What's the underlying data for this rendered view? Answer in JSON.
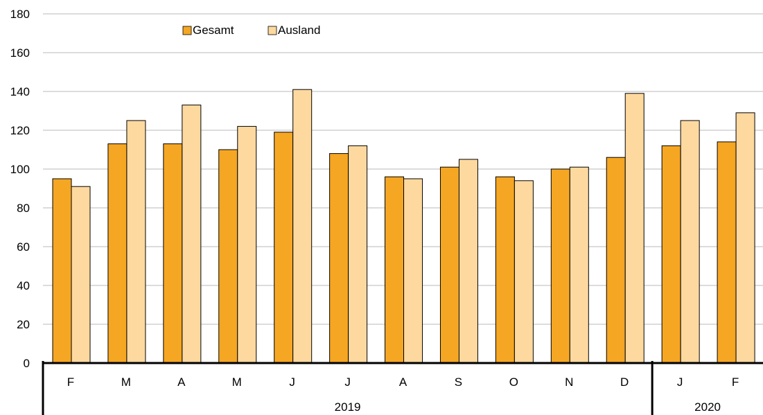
{
  "chart_data": {
    "type": "bar",
    "categories": [
      "F",
      "M",
      "A",
      "M",
      "J",
      "J",
      "A",
      "S",
      "O",
      "N",
      "D",
      "J",
      "F"
    ],
    "groups": [
      {
        "label": "2019",
        "start": 0,
        "end": 10
      },
      {
        "label": "2020",
        "start": 11,
        "end": 12
      }
    ],
    "series": [
      {
        "name": "Gesamt",
        "color": "#F5A623",
        "values": [
          95,
          113,
          113,
          110,
          119,
          108,
          96,
          101,
          96,
          100,
          106,
          112,
          114
        ]
      },
      {
        "name": "Ausland",
        "color": "#FDD9A0",
        "values": [
          91,
          125,
          133,
          122,
          141,
          112,
          95,
          105,
          94,
          101,
          139,
          125,
          129
        ]
      }
    ],
    "ylim": [
      0,
      180
    ],
    "yticks": [
      0,
      20,
      40,
      60,
      80,
      100,
      120,
      140,
      160,
      180
    ],
    "grid": true,
    "legend_position": "top-left"
  }
}
